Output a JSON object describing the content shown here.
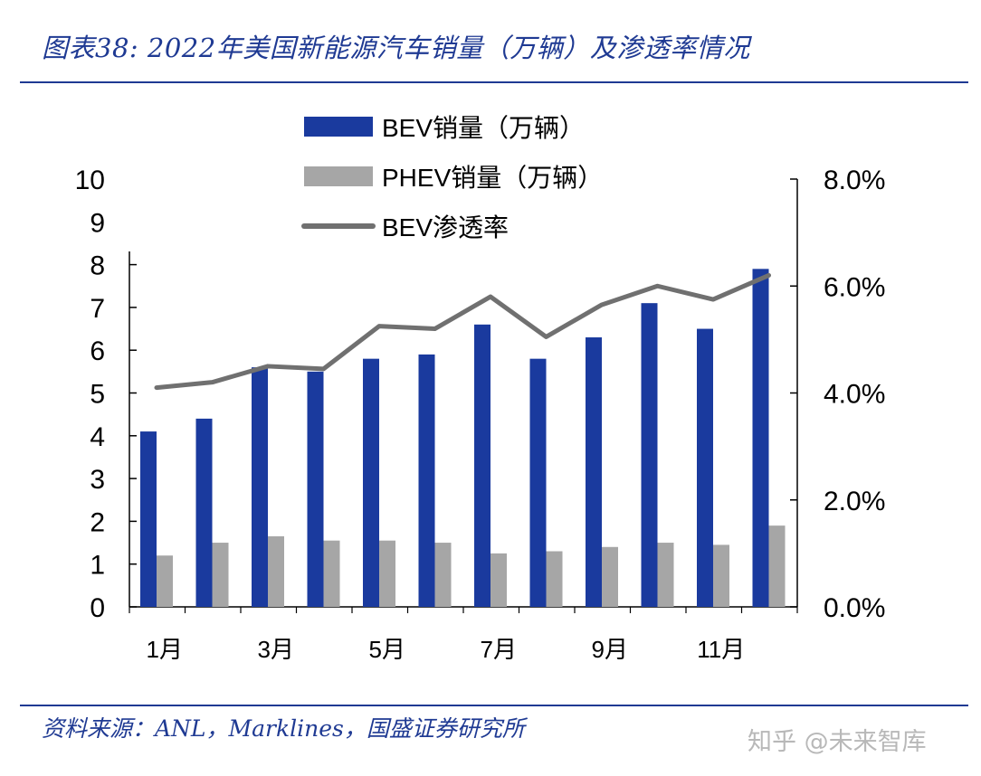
{
  "header": {
    "title": "图表38: 2022年美国新能源汽车销量（万辆）及渗透率情况"
  },
  "footer": {
    "source": "资料来源：ANL，Marklines，国盛证券研究所",
    "watermark": "知乎 @未来智库"
  },
  "colors": {
    "bev": "#1a3a9e",
    "phev": "#a6a6a6",
    "penetration": "#707070",
    "accent": "#1f3a93"
  },
  "chart_data": {
    "type": "bar",
    "categories": [
      "1月",
      "2月",
      "3月",
      "4月",
      "5月",
      "6月",
      "7月",
      "8月",
      "9月",
      "10月",
      "11月",
      "12月"
    ],
    "x_tick_labels": [
      "1月",
      "",
      "3月",
      "",
      "5月",
      "",
      "7月",
      "",
      "9月",
      "",
      "11月",
      ""
    ],
    "series": [
      {
        "name": "BEV销量（万辆）",
        "type": "bar",
        "axis": "left",
        "values": [
          4.1,
          4.4,
          5.6,
          5.5,
          5.8,
          5.9,
          6.6,
          5.8,
          6.3,
          7.1,
          6.5,
          7.9
        ]
      },
      {
        "name": "PHEV销量（万辆）",
        "type": "bar",
        "axis": "left",
        "values": [
          1.2,
          1.5,
          1.65,
          1.55,
          1.55,
          1.5,
          1.25,
          1.3,
          1.4,
          1.5,
          1.45,
          1.9
        ]
      },
      {
        "name": "BEV渗透率",
        "type": "line",
        "axis": "right",
        "values": [
          4.1,
          4.2,
          4.5,
          4.45,
          5.25,
          5.2,
          5.8,
          5.05,
          5.65,
          6.0,
          5.75,
          6.2
        ]
      }
    ],
    "left_axis": {
      "ylim": [
        0,
        10
      ],
      "ticks": [
        "0",
        "1",
        "2",
        "3",
        "4",
        "5",
        "6",
        "7",
        "8",
        "9",
        "10"
      ]
    },
    "right_axis": {
      "ylim": [
        0,
        8
      ],
      "unit": "%",
      "ticks": [
        "0.0%",
        "2.0%",
        "4.0%",
        "6.0%",
        "8.0%"
      ]
    },
    "legend": {
      "placement": "top-center",
      "items": [
        "BEV销量（万辆）",
        "PHEV销量（万辆）",
        "BEV渗透率"
      ]
    },
    "grid": false
  }
}
